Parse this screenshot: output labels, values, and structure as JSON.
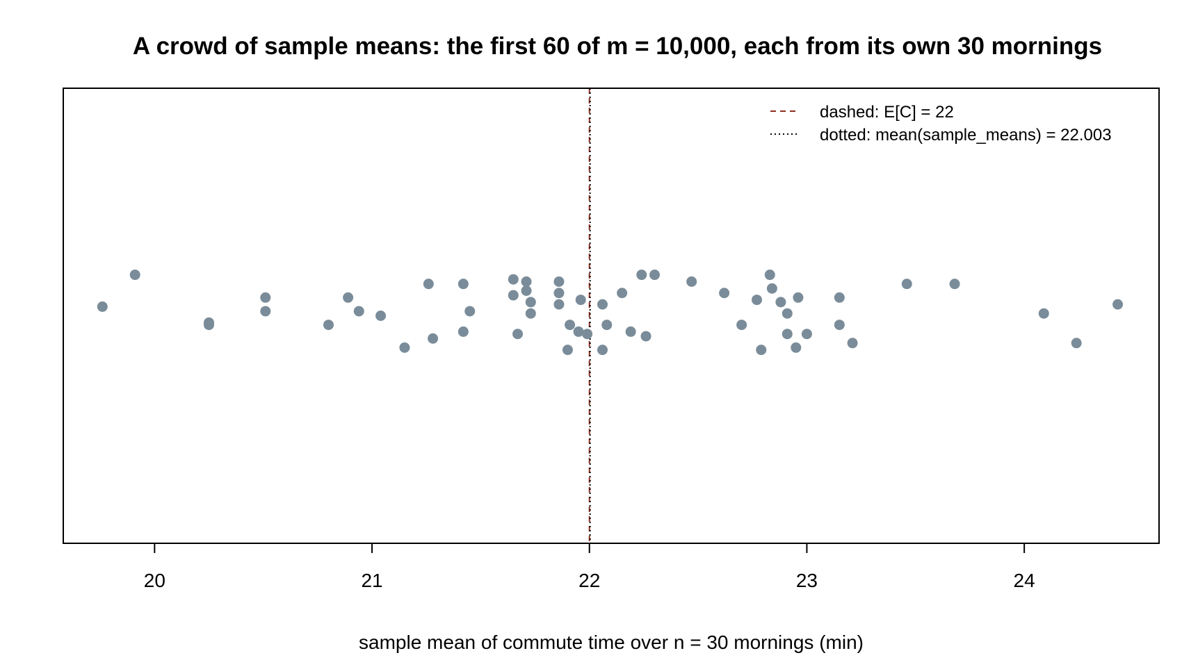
{
  "chart_data": {
    "type": "scatter",
    "title": "A crowd of sample means: the first 60 of m = 10,000, each from its own 30 mornings",
    "xlabel": "sample mean of commute time over n = 30 mornings (min)",
    "ylabel": "",
    "xlim": [
      19.58,
      24.62
    ],
    "ylim": [
      -1,
      1
    ],
    "x_ticks": [
      "20",
      "21",
      "22",
      "23",
      "24"
    ],
    "y_axis_shown": false,
    "grid": false,
    "legend_position": "top-right",
    "legend": [
      {
        "label": "dashed: E[C] = 22",
        "style": "dashed",
        "color": "#8b2e1e"
      },
      {
        "label": "dotted: mean(sample_means) = 22.003",
        "style": "dotted",
        "color": "#000000"
      }
    ],
    "reference_lines": [
      {
        "x": 22,
        "style": "dashed",
        "color": "#8b2e1e"
      },
      {
        "x": 22.003,
        "style": "dotted",
        "color": "#000000"
      }
    ],
    "point_color": "#7a8c99",
    "series": [
      {
        "points": [
          {
            "x": 19.76,
            "y": 0.04
          },
          {
            "x": 19.91,
            "y": 0.18
          },
          {
            "x": 20.25,
            "y": -0.03
          },
          {
            "x": 20.25,
            "y": -0.04
          },
          {
            "x": 20.51,
            "y": 0.08
          },
          {
            "x": 20.51,
            "y": 0.02
          },
          {
            "x": 20.8,
            "y": -0.04
          },
          {
            "x": 20.89,
            "y": 0.08
          },
          {
            "x": 20.94,
            "y": 0.02
          },
          {
            "x": 21.04,
            "y": 0.0
          },
          {
            "x": 21.15,
            "y": -0.14
          },
          {
            "x": 21.26,
            "y": 0.14
          },
          {
            "x": 21.28,
            "y": -0.1
          },
          {
            "x": 21.42,
            "y": 0.14
          },
          {
            "x": 21.42,
            "y": -0.07
          },
          {
            "x": 21.45,
            "y": 0.02
          },
          {
            "x": 21.65,
            "y": 0.16
          },
          {
            "x": 21.65,
            "y": 0.09
          },
          {
            "x": 21.67,
            "y": -0.08
          },
          {
            "x": 21.71,
            "y": 0.15
          },
          {
            "x": 21.71,
            "y": 0.11
          },
          {
            "x": 21.73,
            "y": 0.06
          },
          {
            "x": 21.73,
            "y": 0.01
          },
          {
            "x": 21.86,
            "y": 0.15
          },
          {
            "x": 21.86,
            "y": 0.1
          },
          {
            "x": 21.86,
            "y": 0.05
          },
          {
            "x": 21.9,
            "y": -0.15
          },
          {
            "x": 21.91,
            "y": -0.04
          },
          {
            "x": 21.95,
            "y": -0.07
          },
          {
            "x": 21.96,
            "y": 0.07
          },
          {
            "x": 21.99,
            "y": -0.08
          },
          {
            "x": 22.06,
            "y": -0.15
          },
          {
            "x": 22.06,
            "y": 0.05
          },
          {
            "x": 22.08,
            "y": -0.04
          },
          {
            "x": 22.15,
            "y": 0.1
          },
          {
            "x": 22.19,
            "y": -0.07
          },
          {
            "x": 22.24,
            "y": 0.18
          },
          {
            "x": 22.26,
            "y": -0.09
          },
          {
            "x": 22.3,
            "y": 0.18
          },
          {
            "x": 22.47,
            "y": 0.15
          },
          {
            "x": 22.62,
            "y": 0.1
          },
          {
            "x": 22.7,
            "y": -0.04
          },
          {
            "x": 22.77,
            "y": 0.07
          },
          {
            "x": 22.79,
            "y": -0.15
          },
          {
            "x": 22.83,
            "y": 0.18
          },
          {
            "x": 22.84,
            "y": 0.12
          },
          {
            "x": 22.88,
            "y": 0.06
          },
          {
            "x": 22.91,
            "y": -0.08
          },
          {
            "x": 22.91,
            "y": 0.01
          },
          {
            "x": 22.95,
            "y": -0.14
          },
          {
            "x": 22.96,
            "y": 0.08
          },
          {
            "x": 23.0,
            "y": -0.08
          },
          {
            "x": 23.15,
            "y": 0.08
          },
          {
            "x": 23.15,
            "y": -0.04
          },
          {
            "x": 23.21,
            "y": -0.12
          },
          {
            "x": 23.46,
            "y": 0.14
          },
          {
            "x": 23.68,
            "y": 0.14
          },
          {
            "x": 24.09,
            "y": 0.01
          },
          {
            "x": 24.24,
            "y": -0.12
          },
          {
            "x": 24.43,
            "y": 0.05
          }
        ]
      }
    ]
  }
}
